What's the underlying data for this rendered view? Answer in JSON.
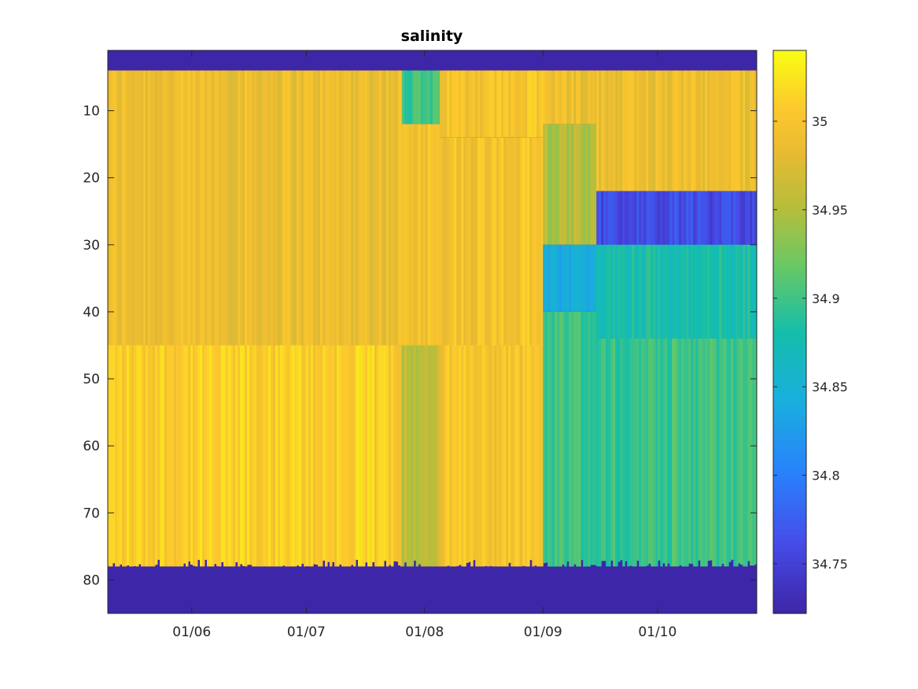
{
  "chart_data": {
    "type": "heatmap",
    "title": "salinity",
    "xlabel": "",
    "ylabel": "",
    "x_range": [
      "2017-05-10",
      "2017-10-27"
    ],
    "x_ticks": [
      "01/06",
      "01/07",
      "01/08",
      "01/09",
      "01/10"
    ],
    "x_tick_dates": [
      "06-01",
      "07-01",
      "08-01",
      "09-01",
      "10-01"
    ],
    "y_range": [
      1,
      85
    ],
    "y_reversed": true,
    "y_ticks": [
      10,
      20,
      30,
      40,
      50,
      60,
      70,
      80
    ],
    "y_tick_labels": [
      "10",
      "20",
      "30",
      "40",
      "50",
      "60",
      "70",
      "80"
    ],
    "colormap": "parula",
    "clim": [
      34.722,
      35.04
    ],
    "colorbar_ticks": [
      34.75,
      34.8,
      34.85,
      34.9,
      34.95,
      35.0
    ],
    "colorbar_tick_labels": [
      "34.75",
      "34.8",
      "34.85",
      "34.9",
      "34.95",
      "35"
    ],
    "invalid_color": "#3e26a8",
    "valid_depth_range_top": 4,
    "bottom_depth_approx": 78,
    "periods": [
      {
        "from": "05-10",
        "to": "07-26",
        "layers": [
          {
            "depth_from": 4,
            "depth_to": 45,
            "salinity": 34.99
          },
          {
            "depth_from": 45,
            "depth_to": 78,
            "salinity": 35.01
          }
        ]
      },
      {
        "from": "07-26",
        "to": "08-05",
        "layers": [
          {
            "depth_from": 4,
            "depth_to": 12,
            "salinity": 34.9
          },
          {
            "depth_from": 12,
            "depth_to": 45,
            "salinity": 35.0
          },
          {
            "depth_from": 45,
            "depth_to": 78,
            "salinity": 34.96
          }
        ]
      },
      {
        "from": "08-05",
        "to": "09-01",
        "layers": [
          {
            "depth_from": 4,
            "depth_to": 14,
            "salinity": 35.0
          },
          {
            "depth_from": 14,
            "depth_to": 45,
            "salinity": 35.0
          },
          {
            "depth_from": 45,
            "depth_to": 78,
            "salinity": 35.0
          }
        ]
      },
      {
        "from": "09-01",
        "to": "09-15",
        "layers": [
          {
            "depth_from": 4,
            "depth_to": 12,
            "salinity": 34.99
          },
          {
            "depth_from": 12,
            "depth_to": 30,
            "salinity": 34.95
          },
          {
            "depth_from": 30,
            "depth_to": 40,
            "salinity": 34.84
          },
          {
            "depth_from": 40,
            "depth_to": 78,
            "salinity": 34.9
          }
        ]
      },
      {
        "from": "09-15",
        "to": "10-27",
        "layers": [
          {
            "depth_from": 4,
            "depth_to": 22,
            "salinity": 34.99
          },
          {
            "depth_from": 22,
            "depth_to": 30,
            "salinity": 34.76
          },
          {
            "depth_from": 30,
            "depth_to": 44,
            "salinity": 34.88
          },
          {
            "depth_from": 44,
            "depth_to": 78,
            "salinity": 34.9
          }
        ]
      }
    ]
  }
}
